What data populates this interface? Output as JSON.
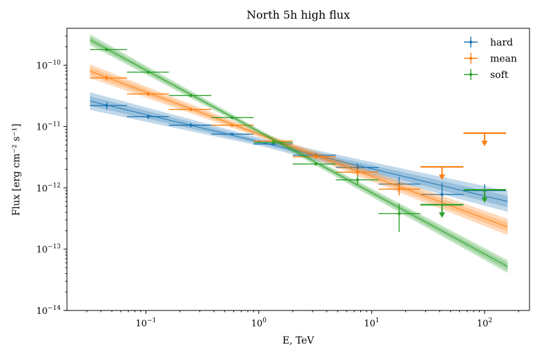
{
  "chart_data": {
    "type": "scatter",
    "title": "North 5h high flux",
    "xlabel": "E, TeV",
    "ylabel": "Flux [erg cm⁻² s⁻¹]",
    "xscale": "log",
    "yscale": "log",
    "xlim": [
      0.02,
      250
    ],
    "ylim": [
      1e-14,
      4e-10
    ],
    "x_ticks": [
      {
        "value": 0.1,
        "base": "10",
        "exp": "−1"
      },
      {
        "value": 1,
        "base": "10",
        "exp": "0"
      },
      {
        "value": 10,
        "base": "10",
        "exp": "1"
      },
      {
        "value": 100,
        "base": "10",
        "exp": "2"
      }
    ],
    "y_ticks": [
      {
        "value": 1e-14,
        "base": "10",
        "exp": "−14"
      },
      {
        "value": 1e-13,
        "base": "10",
        "exp": "−13"
      },
      {
        "value": 1e-12,
        "base": "10",
        "exp": "−12"
      },
      {
        "value": 1e-11,
        "base": "10",
        "exp": "−11"
      },
      {
        "value": 1e-10,
        "base": "10",
        "exp": "−10"
      }
    ],
    "legend": {
      "location": "top-right",
      "entries": [
        "hard",
        "mean",
        "soft"
      ]
    },
    "series": [
      {
        "name": "hard",
        "color": "#1f77b4",
        "model": {
          "e_min": 0.032,
          "e_max": 160,
          "f_min": 2.6e-11,
          "f_max": 6e-13,
          "band_width_dex": 0.09
        },
        "points": [
          {
            "x": 0.045,
            "xlo": 0.032,
            "xhi": 0.068,
            "y": 2.2e-11,
            "ylo": 1.9e-11,
            "yhi": 2.5e-11
          },
          {
            "x": 0.105,
            "xlo": 0.068,
            "xhi": 0.16,
            "y": 1.45e-11,
            "ylo": 1.33e-11,
            "yhi": 1.57e-11
          },
          {
            "x": 0.25,
            "xlo": 0.16,
            "xhi": 0.38,
            "y": 1.05e-11,
            "ylo": 9.7e-12,
            "yhi": 1.13e-11
          },
          {
            "x": 0.58,
            "xlo": 0.38,
            "xhi": 0.9,
            "y": 7.5e-12,
            "ylo": 7.1e-12,
            "yhi": 7.9e-12
          },
          {
            "x": 1.35,
            "xlo": 0.9,
            "xhi": 2.0,
            "y": 5.2e-12,
            "ylo": 4.9e-12,
            "yhi": 5.6e-12
          },
          {
            "x": 3.2,
            "xlo": 2.0,
            "xhi": 4.8,
            "y": 3.4e-12,
            "ylo": 3.1e-12,
            "yhi": 3.7e-12
          },
          {
            "x": 7.5,
            "xlo": 4.8,
            "xhi": 11.5,
            "y": 2.15e-12,
            "ylo": 1.85e-12,
            "yhi": 2.5e-12
          },
          {
            "x": 17.5,
            "xlo": 11.5,
            "xhi": 27,
            "y": 1.15e-12,
            "ylo": 8e-13,
            "yhi": 1.5e-12
          },
          {
            "x": 42,
            "xlo": 27,
            "xhi": 65,
            "y": 7.8e-13,
            "ylo": 4.5e-13,
            "yhi": 1.2e-12
          },
          {
            "x": 100,
            "xlo": 65,
            "xhi": 155,
            "y": 9e-13,
            "ylo": 6.5e-13,
            "yhi": 1.15e-12
          }
        ],
        "upper_limits": []
      },
      {
        "name": "mean",
        "color": "#ff7f0e",
        "model": {
          "e_min": 0.032,
          "e_max": 160,
          "f_min": 8e-11,
          "f_max": 2.3e-13,
          "band_width_dex": 0.07
        },
        "points": [
          {
            "x": 0.045,
            "xlo": 0.032,
            "xhi": 0.068,
            "y": 6.2e-11,
            "ylo": 5.6e-11,
            "yhi": 6.8e-11
          },
          {
            "x": 0.105,
            "xlo": 0.068,
            "xhi": 0.16,
            "y": 3.4e-11,
            "ylo": 3.2e-11,
            "yhi": 3.6e-11
          },
          {
            "x": 0.25,
            "xlo": 0.16,
            "xhi": 0.38,
            "y": 1.9e-11,
            "ylo": 1.8e-11,
            "yhi": 2e-11
          },
          {
            "x": 0.58,
            "xlo": 0.38,
            "xhi": 0.9,
            "y": 1.05e-11,
            "ylo": 1e-11,
            "yhi": 1.1e-11
          },
          {
            "x": 1.35,
            "xlo": 0.9,
            "xhi": 2.0,
            "y": 5.8e-12,
            "ylo": 5.5e-12,
            "yhi": 6.1e-12
          },
          {
            "x": 3.2,
            "xlo": 2.0,
            "xhi": 4.8,
            "y": 3.2e-12,
            "ylo": 3e-12,
            "yhi": 3.4e-12
          },
          {
            "x": 7.5,
            "xlo": 4.8,
            "xhi": 11.5,
            "y": 1.8e-12,
            "ylo": 1.6e-12,
            "yhi": 2e-12
          },
          {
            "x": 17.5,
            "xlo": 11.5,
            "xhi": 27,
            "y": 9.5e-13,
            "ylo": 7.5e-13,
            "yhi": 1.15e-12
          }
        ],
        "upper_limits": [
          {
            "x": 42,
            "xlo": 27,
            "xhi": 65,
            "y": 2.2e-12
          },
          {
            "x": 100,
            "xlo": 65,
            "xhi": 155,
            "y": 7.8e-12
          }
        ]
      },
      {
        "name": "soft",
        "color": "#2ca02c",
        "model": {
          "e_min": 0.032,
          "e_max": 160,
          "f_min": 2.6e-10,
          "f_max": 5.2e-14,
          "band_width_dex": 0.055
        },
        "points": [
          {
            "x": 0.045,
            "xlo": 0.032,
            "xhi": 0.068,
            "y": 1.8e-10,
            "ylo": 1.7e-10,
            "yhi": 1.9e-10
          },
          {
            "x": 0.105,
            "xlo": 0.068,
            "xhi": 0.16,
            "y": 7.7e-11,
            "ylo": 7.4e-11,
            "yhi": 8e-11
          },
          {
            "x": 0.25,
            "xlo": 0.16,
            "xhi": 0.38,
            "y": 3.2e-11,
            "ylo": 3.1e-11,
            "yhi": 3.3e-11
          },
          {
            "x": 0.58,
            "xlo": 0.38,
            "xhi": 0.9,
            "y": 1.4e-11,
            "ylo": 1.35e-11,
            "yhi": 1.45e-11
          },
          {
            "x": 1.35,
            "xlo": 0.9,
            "xhi": 2.0,
            "y": 5.5e-12,
            "ylo": 5.2e-12,
            "yhi": 5.8e-12
          },
          {
            "x": 3.2,
            "xlo": 2.0,
            "xhi": 4.8,
            "y": 2.45e-12,
            "ylo": 2.3e-12,
            "yhi": 2.6e-12
          },
          {
            "x": 7.5,
            "xlo": 4.8,
            "xhi": 11.5,
            "y": 1.35e-12,
            "ylo": 1.1e-12,
            "yhi": 1.6e-12
          },
          {
            "x": 17.5,
            "xlo": 11.5,
            "xhi": 27,
            "y": 3.8e-13,
            "ylo": 1.9e-13,
            "yhi": 5.5e-13
          }
        ],
        "upper_limits": [
          {
            "x": 42,
            "xlo": 27,
            "xhi": 65,
            "y": 5.3e-13
          },
          {
            "x": 100,
            "xlo": 65,
            "xhi": 155,
            "y": 9.3e-13
          }
        ]
      }
    ]
  }
}
